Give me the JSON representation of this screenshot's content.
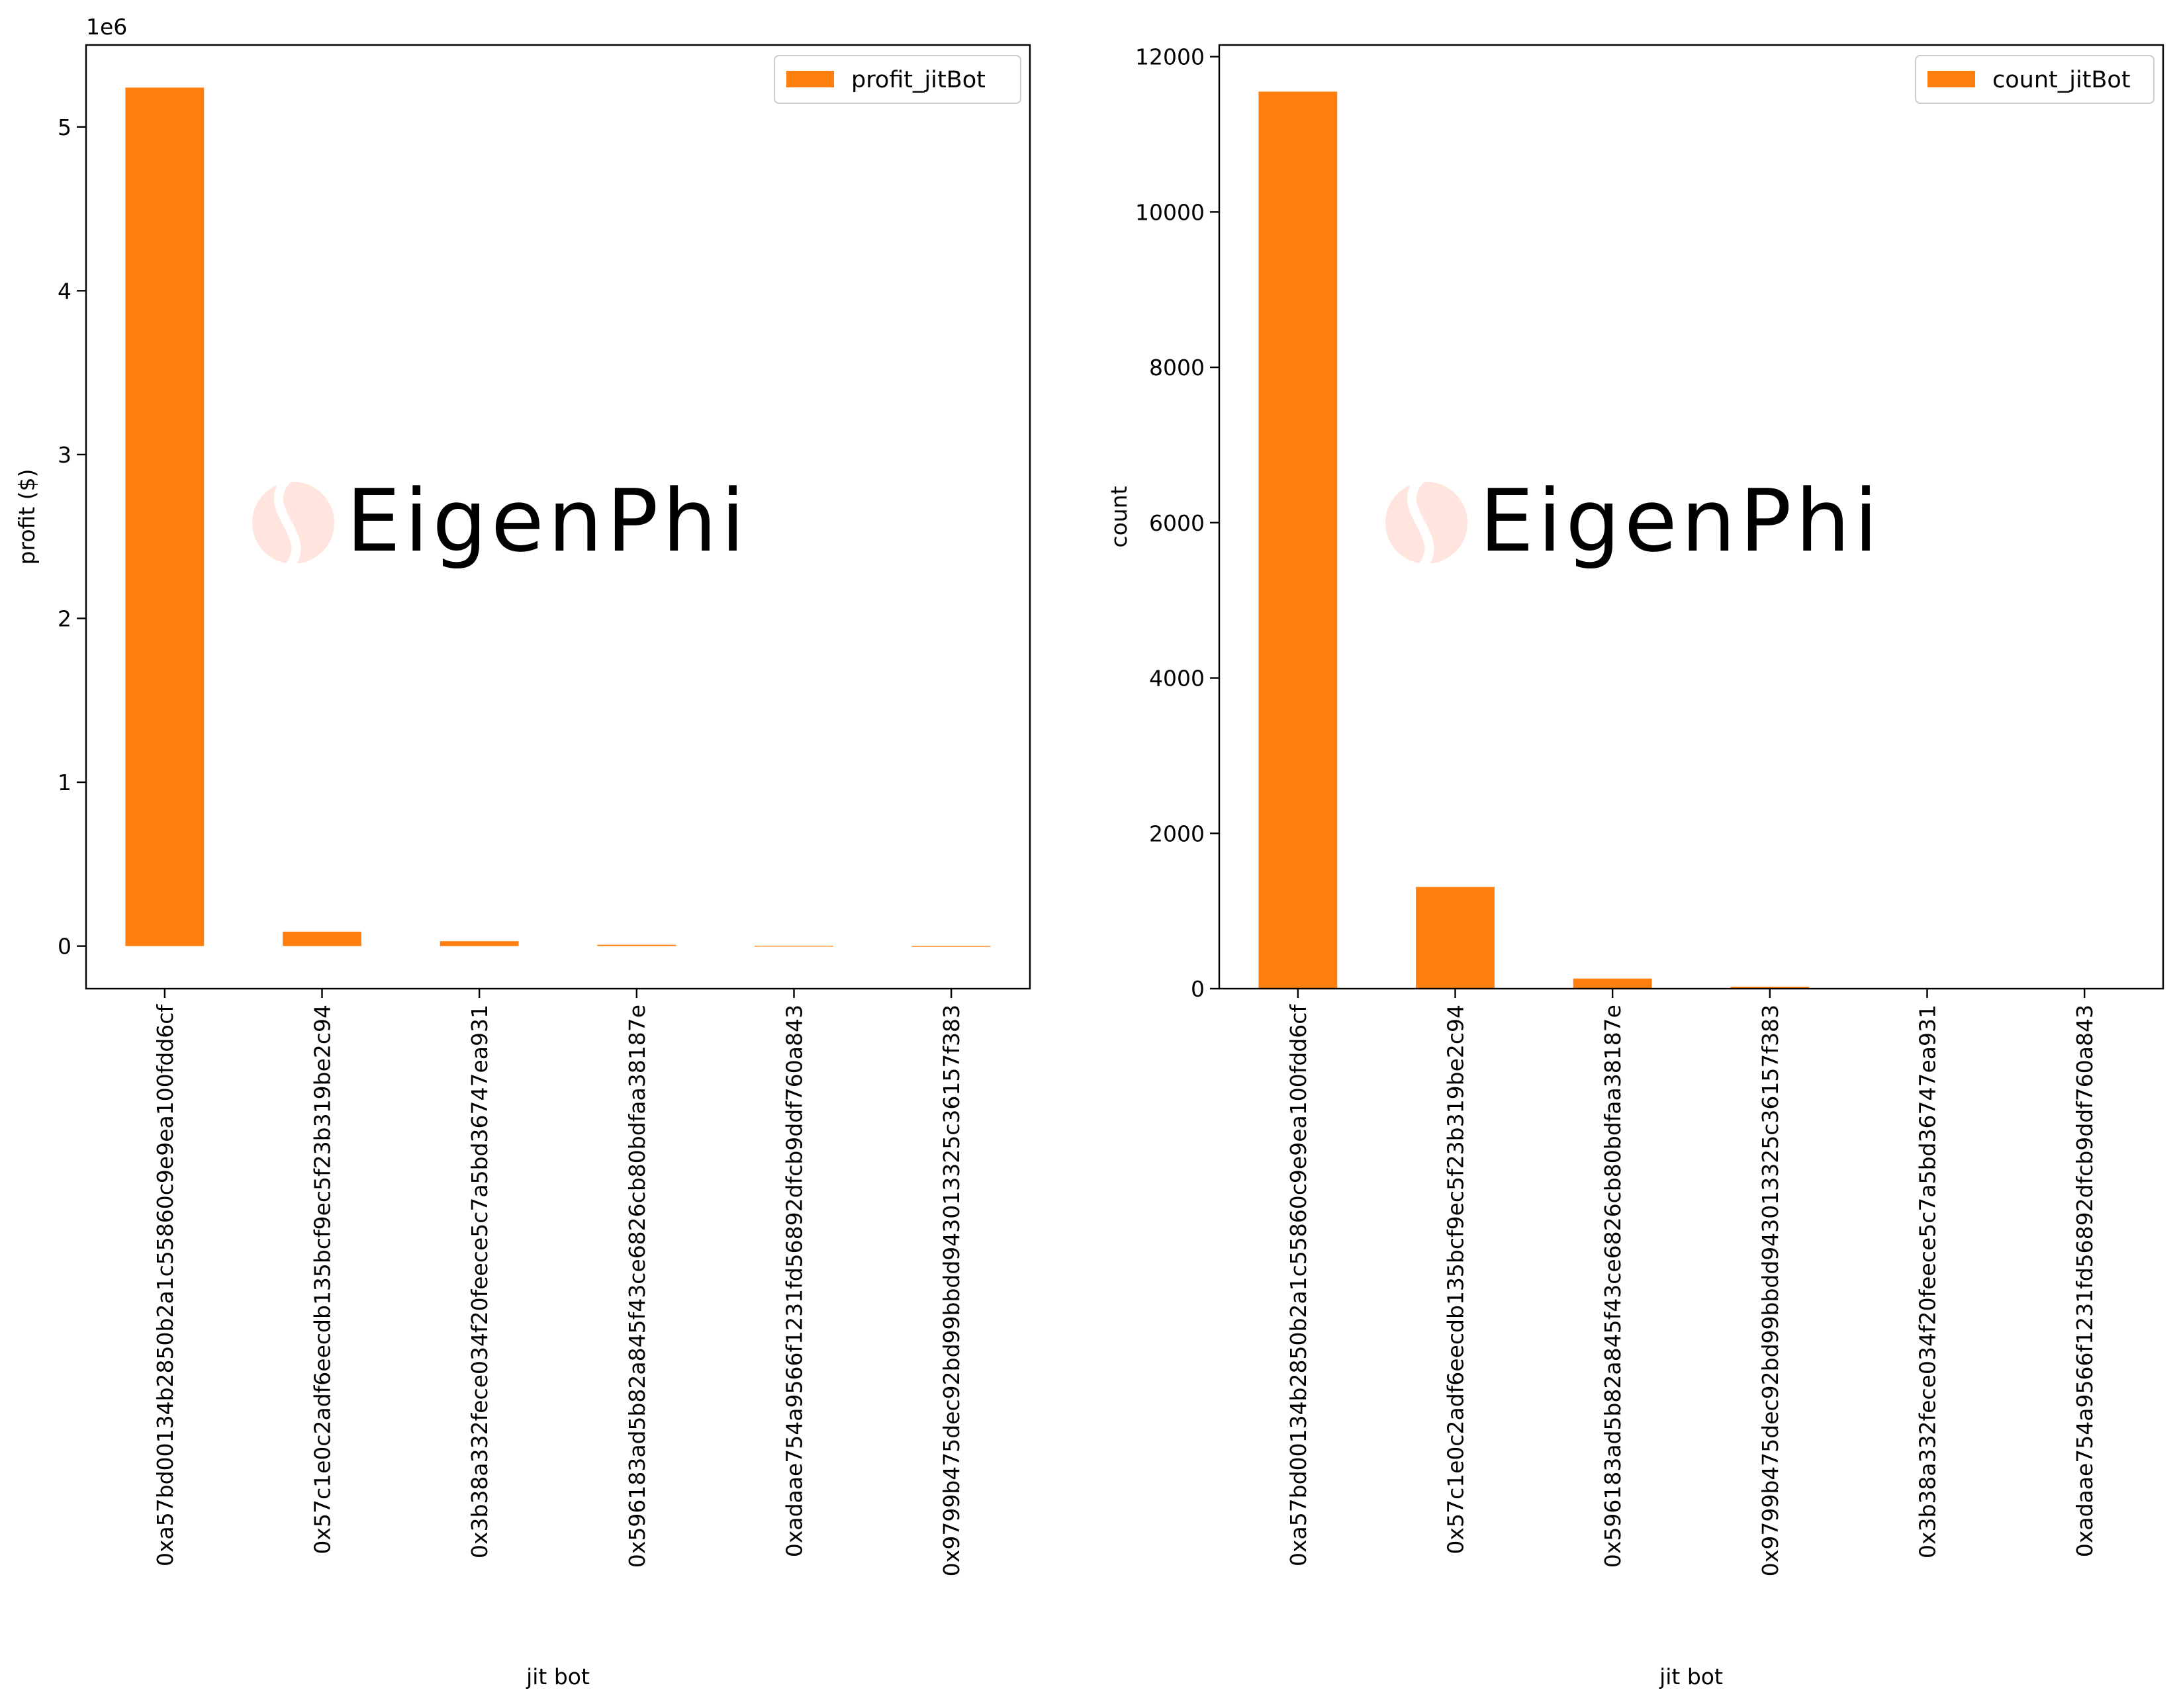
{
  "colors": {
    "bar": "#ff7f0e",
    "axis": "#000000",
    "watermark_text": "#e6e6e6",
    "watermark_logo": "#ff3d00"
  },
  "watermark": {
    "text": "EigenPhi",
    "icon": "eigenphi-logo-icon"
  },
  "chart_data": [
    {
      "type": "bar",
      "xlabel": "jit bot",
      "ylabel": "profit ($)",
      "y_multiplier": "1e6",
      "ylim": [
        -260000,
        5500000
      ],
      "yticks": [
        0,
        1000000,
        2000000,
        3000000,
        4000000,
        5000000
      ],
      "ytick_labels": [
        "0",
        "1",
        "2",
        "3",
        "4",
        "5"
      ],
      "legend": {
        "position": "upper right",
        "entries": [
          "profit_jitBot"
        ]
      },
      "categories": [
        "0xa57bd00134b2850b2a1c55860c9e9ea100fdd6cf",
        "0x57c1e0c2adf6eecdb135bcf9ec5f23b319be2c94",
        "0x3b38a332fece034f20feece5c7a5bd36747ea931",
        "0x596183ad5b82a845f43ce6826cb80bdfaa38187e",
        "0xadaae754a9566f1231fd56892dfcb9ddf760a843",
        "0x9799b475dec92bd99bbdd943013325c36157f383"
      ],
      "series": [
        {
          "name": "profit_jitBot",
          "values": [
            5240000,
            88000,
            30000,
            8000,
            1500,
            400
          ]
        }
      ]
    },
    {
      "type": "bar",
      "xlabel": "jit bot",
      "ylabel": "count",
      "ylim": [
        0,
        12150
      ],
      "yticks": [
        0,
        2000,
        4000,
        6000,
        8000,
        10000,
        12000
      ],
      "ytick_labels": [
        "0",
        "2000",
        "4000",
        "6000",
        "8000",
        "10000",
        "12000"
      ],
      "legend": {
        "position": "upper right",
        "entries": [
          "count_jitBot"
        ]
      },
      "categories": [
        "0xa57bd00134b2850b2a1c55860c9e9ea100fdd6cf",
        "0x57c1e0c2adf6eecdb135bcf9ec5f23b319be2c94",
        "0x596183ad5b82a845f43ce6826cb80bdfaa38187e",
        "0x9799b475dec92bd99bbdd943013325c36157f383",
        "0x3b38a332fece034f20feece5c7a5bd36747ea931",
        "0xadaae754a9566f1231fd56892dfcb9ddf760a843"
      ],
      "series": [
        {
          "name": "count_jitBot",
          "values": [
            11550,
            1310,
            130,
            25,
            8,
            5
          ]
        }
      ]
    }
  ]
}
